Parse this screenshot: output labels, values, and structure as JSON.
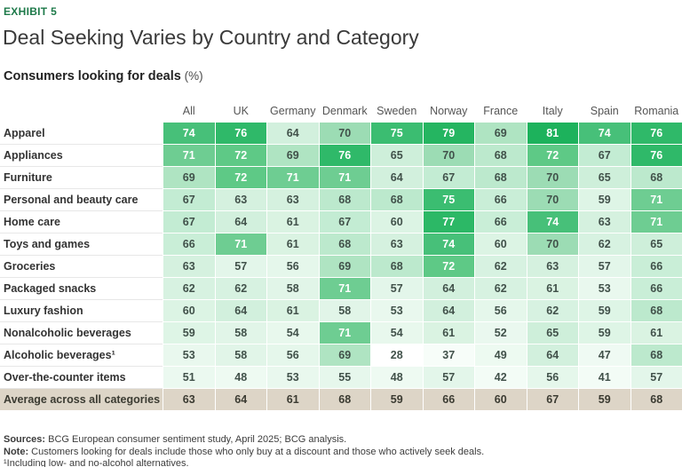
{
  "exhibit_label": "EXHIBIT 5",
  "title": "Deal Seeking Varies by Country and Category",
  "subtitle": {
    "text": "Consumers looking for deals",
    "unit": " (%)"
  },
  "chart_data": {
    "type": "heatmap",
    "title": "Consumers looking for deals (%)",
    "columns": [
      "All",
      "UK",
      "Germany",
      "Denmark",
      "Sweden",
      "Norway",
      "France",
      "Italy",
      "Spain",
      "Romania"
    ],
    "rows": [
      {
        "label": "Apparel",
        "values": [
          74,
          76,
          64,
          70,
          75,
          79,
          69,
          81,
          74,
          76
        ]
      },
      {
        "label": "Appliances",
        "values": [
          71,
          72,
          69,
          76,
          65,
          70,
          68,
          72,
          67,
          76
        ]
      },
      {
        "label": "Furniture",
        "values": [
          69,
          72,
          71,
          71,
          64,
          67,
          68,
          70,
          65,
          68
        ]
      },
      {
        "label": "Personal and beauty care",
        "values": [
          67,
          63,
          63,
          68,
          68,
          75,
          66,
          70,
          59,
          71
        ]
      },
      {
        "label": "Home care",
        "values": [
          67,
          64,
          61,
          67,
          60,
          77,
          66,
          74,
          63,
          71
        ]
      },
      {
        "label": "Toys and games",
        "values": [
          66,
          71,
          61,
          68,
          63,
          74,
          60,
          70,
          62,
          65
        ]
      },
      {
        "label": "Groceries",
        "values": [
          63,
          57,
          56,
          69,
          68,
          72,
          62,
          63,
          57,
          66
        ]
      },
      {
        "label": "Packaged snacks",
        "values": [
          62,
          62,
          58,
          71,
          57,
          64,
          62,
          61,
          53,
          66
        ]
      },
      {
        "label": "Luxury fashion",
        "values": [
          60,
          64,
          61,
          58,
          53,
          64,
          56,
          62,
          59,
          68
        ]
      },
      {
        "label": "Nonalcoholic beverages",
        "values": [
          59,
          58,
          54,
          71,
          54,
          61,
          52,
          65,
          59,
          61
        ]
      },
      {
        "label": "Alcoholic beverages¹",
        "values": [
          53,
          58,
          56,
          69,
          28,
          37,
          49,
          64,
          47,
          68
        ]
      },
      {
        "label": "Over-the-counter items",
        "values": [
          51,
          48,
          53,
          55,
          48,
          57,
          42,
          56,
          41,
          57
        ]
      }
    ],
    "average_row": {
      "label": "Average across all categories",
      "values": [
        63,
        64,
        61,
        68,
        59,
        66,
        60,
        67,
        59,
        68
      ]
    },
    "color_scale": {
      "min_value": 28,
      "max_value": 81,
      "light_color": "#ffffff",
      "dark_color": "#1db25c",
      "white_text_threshold": 71
    },
    "legend_position": "none",
    "grid": false
  },
  "footer": {
    "sources_label": "Sources:",
    "sources_text": " BCG European consumer sentiment study, April 2025; BCG analysis.",
    "note_label": "Note:",
    "note_text": " Customers looking for deals include those who only buy at a discount and those who actively seek deals.",
    "footnote": "¹Including low- and no-alcohol alternatives."
  },
  "colors": {
    "accent_green": "#1e7a4a",
    "average_row_bg": "#ddd5c7",
    "average_row_text": "#3b3b32"
  }
}
